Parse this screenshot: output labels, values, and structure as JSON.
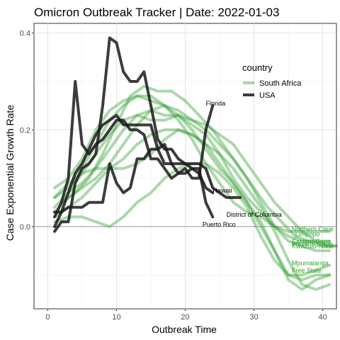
{
  "chart_data": {
    "type": "line",
    "title": "Omicron Outbreak Tracker | Date: 2022-01-03",
    "xlabel": "Outbreak Time",
    "ylabel": "Case Exponential Growth Rate",
    "xlim": [
      -2,
      42
    ],
    "ylim": [
      -0.17,
      0.42
    ],
    "xticks": [
      0,
      10,
      20,
      30,
      40
    ],
    "yticks": [
      0.0,
      0.2,
      0.4
    ],
    "ytick_labels": [
      "0.0",
      "0.2",
      "0.4"
    ],
    "grid": true,
    "reference_line_y": 0,
    "legend": {
      "title": "country",
      "position": "top-right-inside",
      "entries": [
        {
          "name": "South Africa",
          "color": "#2e9e2e"
        },
        {
          "name": "USA",
          "color": "#1a1a1a"
        }
      ]
    },
    "groups": [
      {
        "name": "USA",
        "color": "#1a1a1a",
        "opacity": 0.85,
        "series": [
          {
            "label": "Florida",
            "label_at": [
              23,
              0.25
            ],
            "x": [
              1,
              2,
              3,
              4,
              5,
              6,
              7,
              8,
              9,
              10,
              11,
              12,
              13,
              14,
              15,
              16,
              17,
              18,
              19,
              20,
              21,
              22,
              23,
              24
            ],
            "y": [
              0.02,
              0.05,
              0.1,
              0.3,
              0.17,
              0.15,
              0.17,
              0.18,
              0.2,
              0.22,
              0.22,
              0.2,
              0.2,
              0.19,
              0.14,
              0.14,
              0.12,
              0.1,
              0.11,
              0.12,
              0.1,
              0.1,
              0.2,
              0.25
            ]
          },
          {
            "label": "Hawaii",
            "label_at": [
              24,
              0.07
            ],
            "x": [
              1,
              2,
              3,
              4,
              5,
              6,
              7,
              8,
              9,
              10,
              11,
              12,
              13,
              14,
              15,
              16,
              17,
              18,
              19,
              20,
              21,
              22,
              23,
              24
            ],
            "y": [
              -0.01,
              0.01,
              0.01,
              0.09,
              0.12,
              0.13,
              0.15,
              0.25,
              0.39,
              0.38,
              0.32,
              0.3,
              0.3,
              0.32,
              0.25,
              0.18,
              0.16,
              0.16,
              0.14,
              0.13,
              0.12,
              0.11,
              0.08,
              0.07
            ]
          },
          {
            "label": "District of Columbia",
            "label_at": [
              26,
              0.02
            ],
            "x": [
              1,
              2,
              3,
              4,
              5,
              6,
              7,
              8,
              9,
              10,
              11,
              12,
              13,
              14,
              15,
              16,
              17,
              18,
              19,
              20,
              21,
              22,
              23,
              24,
              25,
              26,
              27,
              28
            ],
            "y": [
              0.0,
              0.03,
              0.07,
              0.11,
              0.13,
              0.16,
              0.19,
              0.21,
              0.22,
              0.23,
              0.21,
              0.21,
              0.21,
              0.21,
              0.21,
              0.16,
              0.13,
              0.13,
              0.13,
              0.13,
              0.13,
              0.13,
              0.12,
              0.08,
              0.07,
              0.06,
              0.06,
              0.06
            ]
          },
          {
            "label": "Puerto Rico",
            "label_at": [
              22.5,
              0.0
            ],
            "x": [
              1,
              2,
              3,
              4,
              5,
              6,
              7,
              8,
              9,
              10,
              11,
              12,
              13,
              14,
              15,
              16,
              17,
              18,
              19,
              20,
              21,
              22,
              23,
              24
            ],
            "y": [
              0.03,
              0.03,
              0.04,
              0.04,
              0.04,
              0.05,
              0.05,
              0.05,
              0.13,
              0.09,
              0.07,
              0.08,
              0.14,
              0.14,
              0.16,
              0.16,
              0.17,
              0.13,
              0.11,
              0.11,
              0.12,
              0.12,
              0.05,
              0.02
            ]
          }
        ]
      },
      {
        "name": "South Africa",
        "color": "#2e9e2e",
        "opacity": 0.4,
        "series": [
          {
            "label": "Northern Cape",
            "label_at": [
              35.5,
              -0.01
            ],
            "x": [
              1,
              3,
              5,
              7,
              9,
              11,
              13,
              15,
              17,
              19,
              21,
              23,
              25,
              27,
              29,
              31,
              33,
              35,
              37,
              39,
              41
            ],
            "y": [
              0.08,
              0.1,
              0.14,
              0.2,
              0.24,
              0.26,
              0.27,
              0.27,
              0.25,
              0.22,
              0.18,
              0.13,
              0.09,
              0.05,
              0.03,
              0.02,
              0.0,
              -0.01,
              -0.01,
              -0.01,
              -0.01
            ]
          },
          {
            "label": "Limpopo",
            "label_at": [
              36,
              -0.02
            ],
            "x": [
              1,
              3,
              5,
              7,
              9,
              11,
              13,
              15,
              17,
              19,
              21,
              23,
              25,
              27,
              29,
              31,
              33,
              35,
              37,
              39,
              41
            ],
            "y": [
              0.06,
              0.08,
              0.12,
              0.17,
              0.22,
              0.25,
              0.27,
              0.26,
              0.25,
              0.23,
              0.21,
              0.19,
              0.15,
              0.1,
              0.06,
              0.03,
              0.0,
              -0.02,
              -0.03,
              -0.03,
              -0.03
            ]
          },
          {
            "label": "Eastern Cape",
            "label_at": [
              35.5,
              -0.035
            ],
            "x": [
              2,
              4,
              6,
              8,
              10,
              12,
              14,
              16,
              18,
              20,
              22,
              24,
              26,
              28,
              30,
              32,
              34,
              36,
              38,
              40,
              42
            ],
            "y": [
              0.05,
              0.07,
              0.1,
              0.15,
              0.21,
              0.27,
              0.29,
              0.28,
              0.28,
              0.26,
              0.23,
              0.2,
              0.16,
              0.12,
              0.08,
              0.04,
              0.01,
              -0.02,
              -0.03,
              -0.04,
              -0.04
            ]
          },
          {
            "label": "Western Cape",
            "label_at": [
              35.5,
              -0.04
            ],
            "x": [
              3,
              5,
              7,
              9,
              11,
              13,
              15,
              17,
              19,
              21,
              23,
              25,
              27,
              29,
              31,
              33,
              35,
              37,
              39,
              41,
              42
            ],
            "y": [
              0.07,
              0.09,
              0.12,
              0.16,
              0.2,
              0.23,
              0.24,
              0.23,
              0.23,
              0.22,
              0.21,
              0.19,
              0.17,
              0.13,
              0.09,
              0.05,
              0.02,
              -0.01,
              -0.03,
              -0.04,
              -0.04
            ]
          },
          {
            "label": "KwaZulu-Natal",
            "label_at": [
              35.5,
              -0.045
            ],
            "x": [
              1,
              3,
              5,
              7,
              9,
              11,
              13,
              15,
              17,
              19,
              21,
              23,
              25,
              27,
              29,
              31,
              33,
              35,
              37,
              39,
              41
            ],
            "y": [
              0.03,
              0.06,
              0.08,
              0.1,
              0.13,
              0.17,
              0.21,
              0.24,
              0.25,
              0.24,
              0.22,
              0.2,
              0.17,
              0.14,
              0.1,
              0.05,
              0.0,
              -0.03,
              -0.04,
              -0.05,
              -0.05
            ]
          },
          {
            "label": "Mpumalanga",
            "label_at": [
              35.5,
              -0.08
            ],
            "x": [
              1,
              3,
              5,
              7,
              9,
              11,
              13,
              15,
              17,
              19,
              21,
              23,
              25,
              27,
              29,
              31,
              33,
              35,
              37,
              39,
              41
            ],
            "y": [
              0.02,
              0.04,
              0.06,
              0.09,
              0.12,
              0.14,
              0.17,
              0.19,
              0.2,
              0.2,
              0.19,
              0.17,
              0.13,
              0.09,
              0.05,
              0.0,
              -0.05,
              -0.1,
              -0.1,
              -0.09,
              -0.08
            ]
          },
          {
            "label": "Free State",
            "label_at": [
              35.5,
              -0.095
            ],
            "x": [
              1,
              3,
              5,
              7,
              9,
              11,
              13,
              15,
              17,
              19,
              21,
              23,
              25,
              27,
              29,
              31,
              33,
              35,
              37,
              39,
              41
            ],
            "y": [
              0.01,
              0.02,
              0.02,
              0.01,
              0.0,
              0.02,
              0.05,
              0.07,
              0.1,
              0.12,
              0.13,
              0.13,
              0.11,
              0.08,
              0.04,
              -0.02,
              -0.07,
              -0.1,
              -0.11,
              -0.1,
              -0.1
            ]
          },
          {
            "label": "",
            "label_at": null,
            "x": [
              1,
              3,
              5,
              7,
              9,
              11,
              13,
              15,
              17,
              19,
              21,
              23,
              25,
              27,
              29,
              31,
              33,
              35,
              37,
              39,
              41
            ],
            "y": [
              0.04,
              0.07,
              0.11,
              0.15,
              0.19,
              0.22,
              0.23,
              0.22,
              0.22,
              0.23,
              0.2,
              0.16,
              0.12,
              0.09,
              0.05,
              0.01,
              -0.05,
              -0.11,
              -0.13,
              -0.11,
              -0.1
            ]
          },
          {
            "label": "",
            "label_at": null,
            "x": [
              1,
              3,
              5,
              7,
              9,
              11,
              13,
              15,
              17,
              19,
              21,
              23,
              25,
              27,
              29,
              31,
              33,
              35,
              37,
              39,
              41
            ],
            "y": [
              0.06,
              0.09,
              0.11,
              0.12,
              0.12,
              0.12,
              0.13,
              0.15,
              0.18,
              0.2,
              0.19,
              0.17,
              0.15,
              0.12,
              0.08,
              0.04,
              -0.01,
              -0.07,
              -0.12,
              -0.13,
              -0.12
            ]
          }
        ]
      }
    ]
  }
}
